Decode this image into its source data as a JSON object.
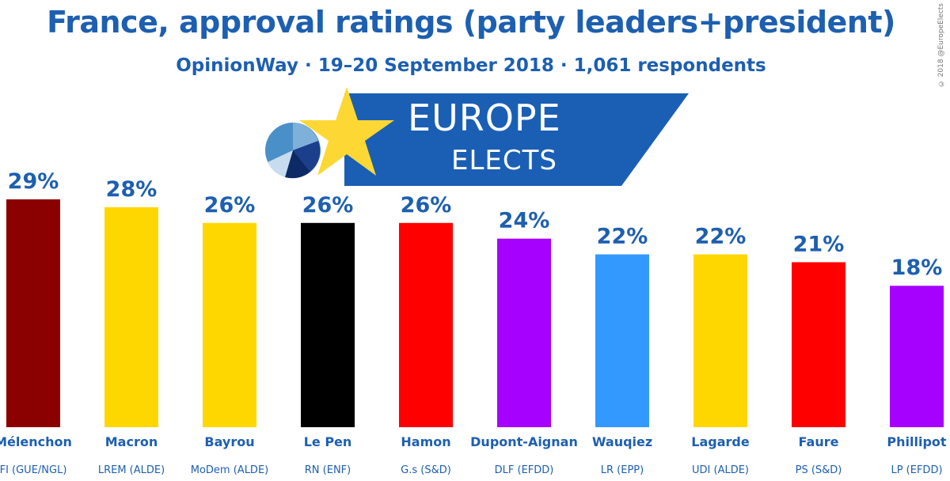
{
  "title": "France, approval ratings (party leaders+president)",
  "subtitle": "OpinionWay · 19–20 September 2018 · 1,061 respondents",
  "copyright": "© 2018 @EuropeElects",
  "logo": {
    "line1": "EUROPE",
    "line2": "ELECTS"
  },
  "chart_data": {
    "type": "bar",
    "categories": [
      "Mélenchon",
      "Macron",
      "Bayrou",
      "Le Pen",
      "Hamon",
      "Dupont-Aignan",
      "Wauqiez",
      "Lagarde",
      "Faure",
      "Phillipot"
    ],
    "parties": [
      "FI (GUE/NGL)",
      "LREM (ALDE)",
      "MoDem (ALDE)",
      "RN (ENF)",
      "G.s (S&D)",
      "DLF (EFDD)",
      "LR (EPP)",
      "UDI (ALDE)",
      "PS (S&D)",
      "LP (EFDD)"
    ],
    "values": [
      29,
      28,
      26,
      26,
      26,
      24,
      22,
      22,
      21,
      18
    ],
    "value_labels": [
      "29%",
      "28%",
      "26%",
      "26%",
      "26%",
      "24%",
      "22%",
      "22%",
      "21%",
      "18%"
    ],
    "colors": [
      "#8b0000",
      "#ffd700",
      "#ffd700",
      "#000000",
      "#ff0000",
      "#a600ff",
      "#3399ff",
      "#ffd700",
      "#ff0000",
      "#a600ff"
    ],
    "label_color": "#1d5fb0",
    "ylim": [
      0,
      29
    ]
  }
}
